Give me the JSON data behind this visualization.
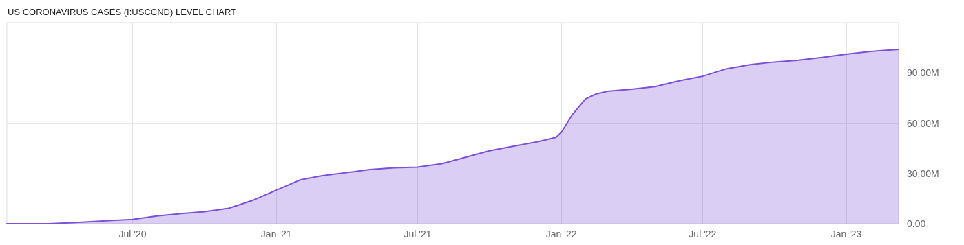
{
  "chart_data": {
    "type": "area",
    "title": "US CORONAVIRUS CASES (I:USCCND) LEVEL CHART",
    "x": [
      "2020-01-22",
      "2020-03-15",
      "2020-04-15",
      "2020-06-01",
      "2020-07-01",
      "2020-08-01",
      "2020-09-01",
      "2020-10-01",
      "2020-11-01",
      "2020-12-01",
      "2021-01-01",
      "2021-02-01",
      "2021-03-01",
      "2021-04-01",
      "2021-05-01",
      "2021-06-01",
      "2021-07-01",
      "2021-08-01",
      "2021-09-01",
      "2021-10-01",
      "2021-11-01",
      "2021-12-01",
      "2021-12-25",
      "2022-01-01",
      "2022-01-15",
      "2022-02-01",
      "2022-02-15",
      "2022-03-01",
      "2022-04-01",
      "2022-05-01",
      "2022-06-01",
      "2022-07-01",
      "2022-08-01",
      "2022-09-01",
      "2022-10-01",
      "2022-11-01",
      "2022-12-01",
      "2023-01-01",
      "2023-02-01",
      "2023-03-09"
    ],
    "series": [
      {
        "color": "#7b4fd6",
        "values": [
          0,
          0,
          0.6,
          1.8,
          2.6,
          4.6,
          6.0,
          7.2,
          9.2,
          13.8,
          20,
          26.2,
          28.7,
          30.5,
          32.4,
          33.4,
          33.8,
          35.8,
          39.7,
          43.5,
          46.3,
          48.8,
          51.5,
          54.5,
          65,
          74.5,
          77.5,
          79,
          80.3,
          81.8,
          85.3,
          88,
          92.5,
          95,
          96.5,
          97.6,
          99.2,
          101.2,
          102.8,
          104
        ]
      }
    ],
    "xlim": [
      "2020-01-22",
      "2023-03-09"
    ],
    "xticks": [
      {
        "value": "2020-07-01",
        "label": "Jul '20"
      },
      {
        "value": "2021-01-01",
        "label": "Jan '21"
      },
      {
        "value": "2021-07-01",
        "label": "Jul '21"
      },
      {
        "value": "2022-01-01",
        "label": "Jan '22"
      },
      {
        "value": "2022-07-01",
        "label": "Jul '22"
      },
      {
        "value": "2023-01-01",
        "label": "Jan '23"
      }
    ],
    "ylim": [
      0,
      120
    ],
    "yticks": [
      {
        "value": 0,
        "label": "0.00"
      },
      {
        "value": 30,
        "label": "30.00M"
      },
      {
        "value": 60,
        "label": "60.00M"
      },
      {
        "value": 90,
        "label": "90.00M"
      }
    ],
    "grid": true,
    "marker": "none",
    "line_style": "solid"
  }
}
